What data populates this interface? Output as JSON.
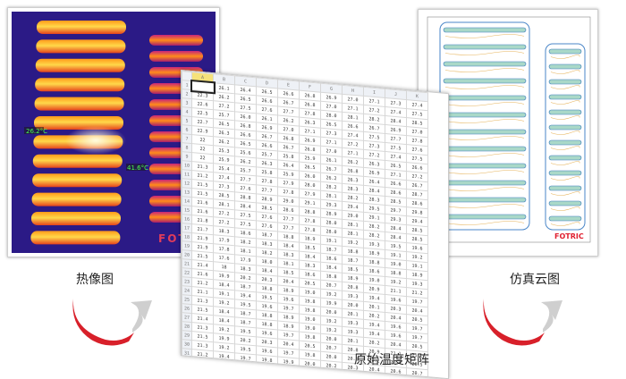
{
  "captions": {
    "thermal": "热像图",
    "simulation": "仿真云图",
    "matrix": "原始温度矩阵"
  },
  "thermal_image": {
    "brand": "FOTRIC",
    "marker_left": "26.2°C",
    "marker_center": "41.6°C"
  },
  "simulation_image": {
    "brand": "FOTRIC"
  },
  "colors": {
    "thermal_background": "#2b1a86",
    "thermal_hot": "#ffd24a",
    "arrow_red": "#d8202a",
    "arrow_grey": "#cfcfcf"
  },
  "spreadsheet": {
    "columns": [
      "A",
      "B",
      "C",
      "D",
      "E",
      "F",
      "G",
      "H",
      "I",
      "J",
      "K"
    ],
    "first_column_values": [
      "21.6",
      "22.3",
      "22.6",
      "22.5",
      "22.7",
      "22.9",
      "22",
      "22",
      "22",
      "21.3",
      "21.2",
      "21.5",
      "21.5",
      "21.6",
      "21.6",
      "21.8",
      "21.7",
      "21.9",
      "21.9",
      "21.5",
      "21.4",
      "21.6",
      "21.2",
      "21.1",
      "21.3",
      "21.5",
      "21.4",
      "21.3",
      "21.5",
      "21.3",
      "21.2",
      "21.3"
    ],
    "second_column_values": [
      "26.1",
      "26.2",
      "27.2",
      "25.7",
      "26.5",
      "26.3",
      "26.2",
      "25.3",
      "25.9",
      "25.4",
      "27.4",
      "27.3",
      "28.5",
      "28.1",
      "27.2",
      "27.2",
      "18.3",
      "17.9",
      "17.8",
      "17.6",
      "18",
      "19.9",
      "18.4",
      "19.1",
      "19.2",
      "18.4",
      "18.4",
      "19.2",
      "19.9",
      "19.2",
      "19.4",
      "19.3"
    ]
  }
}
